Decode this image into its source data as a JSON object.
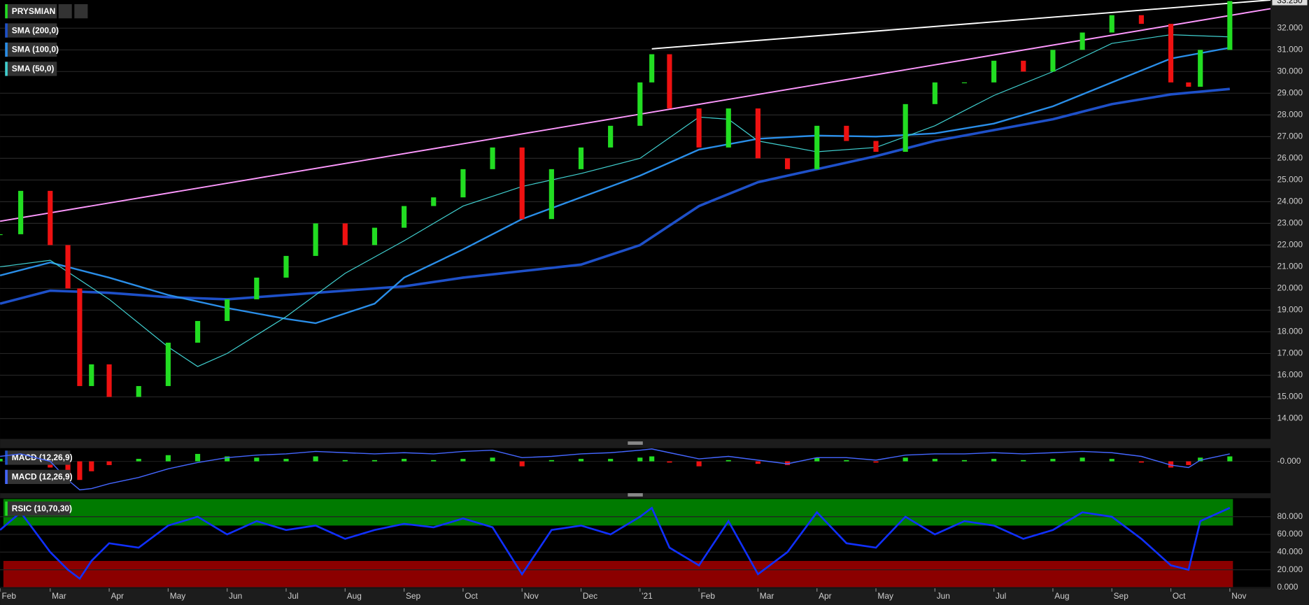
{
  "chart_data": [
    {
      "type": "candlestick",
      "name": "PRYSMIAN",
      "up_color": "#22dd22",
      "down_color": "#ee1111",
      "x": [
        0.15,
        0.5,
        1,
        1.3,
        1.5,
        1.7,
        2,
        2.5,
        3,
        3.5,
        4,
        4.5,
        5,
        5.5,
        6,
        6.5,
        7,
        7.5,
        8,
        8.5,
        9,
        9.5,
        10,
        10.5,
        11,
        11.2,
        11.5,
        12,
        12.5,
        13,
        13.5,
        14,
        14.5,
        15,
        15.5,
        16,
        16.5,
        17,
        17.5,
        18,
        18.5,
        19,
        19.5,
        20,
        20.3,
        20.5,
        21
      ],
      "close": [
        22.5,
        24.5,
        22,
        20,
        15.5,
        16.5,
        15,
        15.5,
        17.5,
        18.5,
        19.5,
        20.5,
        21.5,
        23,
        22,
        22.8,
        23.8,
        24.2,
        25.5,
        26.5,
        23.2,
        25.5,
        26.5,
        27.5,
        29.5,
        30.8,
        28.3,
        26.5,
        28.3,
        26,
        25.5,
        27.5,
        26.8,
        26.3,
        28.5,
        29.5,
        29.5,
        30.5,
        30,
        31,
        31.8,
        32.6,
        32.2,
        29.5,
        29.3,
        31,
        33.25
      ],
      "last_price": {
        "value": 33.25,
        "label": "33.250"
      },
      "xlim": [
        0.15,
        21.69
      ],
      "ylim": [
        13.1,
        33.3
      ],
      "grid": true,
      "xticks": [
        {
          "value": 0.15,
          "label": "Feb"
        },
        {
          "value": 1,
          "label": "Mar"
        },
        {
          "value": 2,
          "label": "Apr"
        },
        {
          "value": 3,
          "label": "May"
        },
        {
          "value": 4,
          "label": "Jun"
        },
        {
          "value": 5,
          "label": "Jul"
        },
        {
          "value": 6,
          "label": "Aug"
        },
        {
          "value": 7,
          "label": "Sep"
        },
        {
          "value": 8,
          "label": "Oct"
        },
        {
          "value": 9,
          "label": "Nov"
        },
        {
          "value": 10,
          "label": "Dec"
        },
        {
          "value": 11,
          "label": "'21"
        },
        {
          "value": 12,
          "label": "Feb"
        },
        {
          "value": 13,
          "label": "Mar"
        },
        {
          "value": 14,
          "label": "Apr"
        },
        {
          "value": 15,
          "label": "May"
        },
        {
          "value": 16,
          "label": "Jun"
        },
        {
          "value": 17,
          "label": "Jul"
        },
        {
          "value": 18,
          "label": "Aug"
        },
        {
          "value": 19,
          "label": "Sep"
        },
        {
          "value": 20,
          "label": "Oct"
        },
        {
          "value": 21,
          "label": "Nov"
        }
      ],
      "yticks": [
        {
          "value": 14,
          "label": "14.000"
        },
        {
          "value": 15,
          "label": "15.000"
        },
        {
          "value": 16,
          "label": "16.000"
        },
        {
          "value": 17,
          "label": "17.000"
        },
        {
          "value": 18,
          "label": "18.000"
        },
        {
          "value": 19,
          "label": "19.000"
        },
        {
          "value": 20,
          "label": "20.000"
        },
        {
          "value": 21,
          "label": "21.000"
        },
        {
          "value": 22,
          "label": "22.000"
        },
        {
          "value": 23,
          "label": "23.000"
        },
        {
          "value": 24,
          "label": "24.000"
        },
        {
          "value": 25,
          "label": "25.000"
        },
        {
          "value": 26,
          "label": "26.000"
        },
        {
          "value": 27,
          "label": "27.000"
        },
        {
          "value": 28,
          "label": "28.000"
        },
        {
          "value": 29,
          "label": "29.000"
        },
        {
          "value": 30,
          "label": "30.000"
        },
        {
          "value": 31,
          "label": "31.000"
        },
        {
          "value": 32,
          "label": "32.000"
        }
      ],
      "series": [
        {
          "name": "SMA (200,0)",
          "color": "#1e50c8",
          "x": [
            0.15,
            1,
            2,
            3,
            4,
            5,
            6,
            7,
            8,
            9,
            10,
            11,
            12,
            13,
            14,
            15,
            16,
            17,
            18,
            19,
            20,
            21
          ],
          "values": [
            19.3,
            19.9,
            19.8,
            19.6,
            19.5,
            19.7,
            19.9,
            20.1,
            20.5,
            20.8,
            21.1,
            22,
            23.8,
            24.9,
            25.5,
            26.1,
            26.8,
            27.3,
            27.8,
            28.5,
            28.95,
            29.2
          ]
        },
        {
          "name": "SMA (100,0)",
          "color": "#2a8ee8",
          "x": [
            0.15,
            1,
            2,
            3,
            4,
            5,
            5.5,
            6.5,
            7,
            8,
            9,
            10,
            11,
            12,
            13,
            14,
            15,
            16,
            17,
            18,
            19,
            20,
            21
          ],
          "values": [
            20.6,
            21.2,
            20.5,
            19.7,
            19.1,
            18.6,
            18.4,
            19.3,
            20.5,
            21.8,
            23.2,
            24.2,
            25.2,
            26.4,
            26.9,
            27.05,
            27.0,
            27.15,
            27.6,
            28.4,
            29.5,
            30.6,
            31.1
          ]
        },
        {
          "name": "SMA (50,0)",
          "color": "#40d0d0",
          "x": [
            0.15,
            1,
            2,
            3,
            3.5,
            4,
            5,
            6,
            7,
            8,
            9,
            10,
            11,
            12,
            12.5,
            13,
            14,
            15,
            16,
            17,
            18,
            19,
            20,
            21
          ],
          "values": [
            21.0,
            21.3,
            19.5,
            17.3,
            16.4,
            17.0,
            18.7,
            20.7,
            22.2,
            23.8,
            24.7,
            25.3,
            26.0,
            27.9,
            27.8,
            26.8,
            26.3,
            26.5,
            27.5,
            28.9,
            30.0,
            31.3,
            31.7,
            31.6
          ]
        }
      ],
      "trendlines": [
        {
          "color": "#ff99ff",
          "x": [
            0.15,
            21.69
          ],
          "values": [
            23.1,
            32.9
          ]
        },
        {
          "color": "#ffffff",
          "x": [
            11.2,
            21.69
          ],
          "values": [
            31.05,
            33.3
          ]
        }
      ]
    },
    {
      "type": "macd",
      "ylim": [
        -2.5,
        1
      ],
      "yticks": [
        {
          "value": 0,
          "label": "-0.000"
        }
      ],
      "x": [
        0.15,
        0.5,
        1,
        1.3,
        1.5,
        1.7,
        2,
        2.5,
        3,
        3.5,
        4,
        4.5,
        5,
        5.5,
        6,
        6.5,
        7,
        7.5,
        8,
        8.5,
        9,
        9.5,
        10,
        10.5,
        11,
        11.2,
        11.5,
        12,
        12.5,
        13,
        13.5,
        14,
        14.5,
        15,
        15.5,
        16,
        16.5,
        17,
        17.5,
        18,
        18.5,
        19,
        19.5,
        20,
        20.3,
        20.5,
        21
      ],
      "series": [
        {
          "name": "MACD (12,26,9)",
          "up_color": "#22dd22",
          "down_color": "#ee1111",
          "values": [
            0.2,
            0.3,
            -0.5,
            -1.2,
            -1.5,
            -0.8,
            -0.3,
            0.2,
            0.5,
            0.6,
            0.4,
            0.3,
            0.2,
            0.4,
            0.1,
            0.1,
            0.2,
            0.1,
            0.2,
            0.3,
            -0.4,
            0.1,
            0.2,
            0.2,
            0.3,
            0.4,
            -0.1,
            -0.4,
            0.1,
            -0.2,
            -0.3,
            0.3,
            0.1,
            -0.1,
            0.3,
            0.2,
            0.1,
            0.2,
            0.1,
            0.2,
            0.3,
            0.2,
            -0.1,
            -0.5,
            -0.3,
            0.3,
            0.4
          ]
        },
        {
          "name": "MACD (12,26,9)",
          "color": "#4466ff",
          "values": [
            0.4,
            0.6,
            0,
            -1.5,
            -2.3,
            -2.2,
            -1.8,
            -1.3,
            -0.6,
            -0.1,
            0.3,
            0.5,
            0.6,
            0.8,
            0.7,
            0.6,
            0.7,
            0.6,
            0.8,
            0.9,
            0.3,
            0.4,
            0.6,
            0.7,
            0.9,
            1,
            0.7,
            0.2,
            0.4,
            0.1,
            -0.2,
            0.3,
            0.3,
            0.1,
            0.5,
            0.6,
            0.6,
            0.7,
            0.6,
            0.7,
            0.8,
            0.7,
            0.4,
            -0.3,
            -0.5,
            0.1,
            0.6
          ]
        }
      ]
    },
    {
      "type": "rsi",
      "name": "RSIC (10,70,30)",
      "color": "#1030ff",
      "ylim": [
        0,
        100
      ],
      "yticks": [
        {
          "value": 0,
          "label": "0.000"
        },
        {
          "value": 20,
          "label": "20.000"
        },
        {
          "value": 40,
          "label": "40.000"
        },
        {
          "value": 60,
          "label": "60.000"
        },
        {
          "value": 80,
          "label": "80.000"
        }
      ],
      "zones": [
        {
          "range": [
            70,
            100
          ],
          "color": "#007a00"
        },
        {
          "range": [
            0,
            30
          ],
          "color": "#8b0000"
        }
      ],
      "x": [
        0.15,
        0.5,
        1,
        1.3,
        1.5,
        1.7,
        2,
        2.5,
        3,
        3.5,
        4,
        4.5,
        5,
        5.5,
        6,
        6.5,
        7,
        7.5,
        8,
        8.5,
        9,
        9.5,
        10,
        10.5,
        11,
        11.2,
        11.5,
        12,
        12.5,
        13,
        13.5,
        14,
        14.5,
        15,
        15.5,
        16,
        16.5,
        17,
        17.5,
        18,
        18.5,
        19,
        19.5,
        20,
        20.3,
        20.5,
        21
      ],
      "values": [
        65,
        85,
        40,
        20,
        10,
        30,
        50,
        45,
        70,
        80,
        60,
        75,
        65,
        70,
        55,
        65,
        72,
        68,
        78,
        68,
        15,
        65,
        70,
        60,
        80,
        90,
        45,
        25,
        75,
        15,
        40,
        85,
        50,
        45,
        80,
        60,
        75,
        70,
        55,
        65,
        85,
        80,
        55,
        25,
        20,
        75,
        90
      ]
    }
  ]
}
